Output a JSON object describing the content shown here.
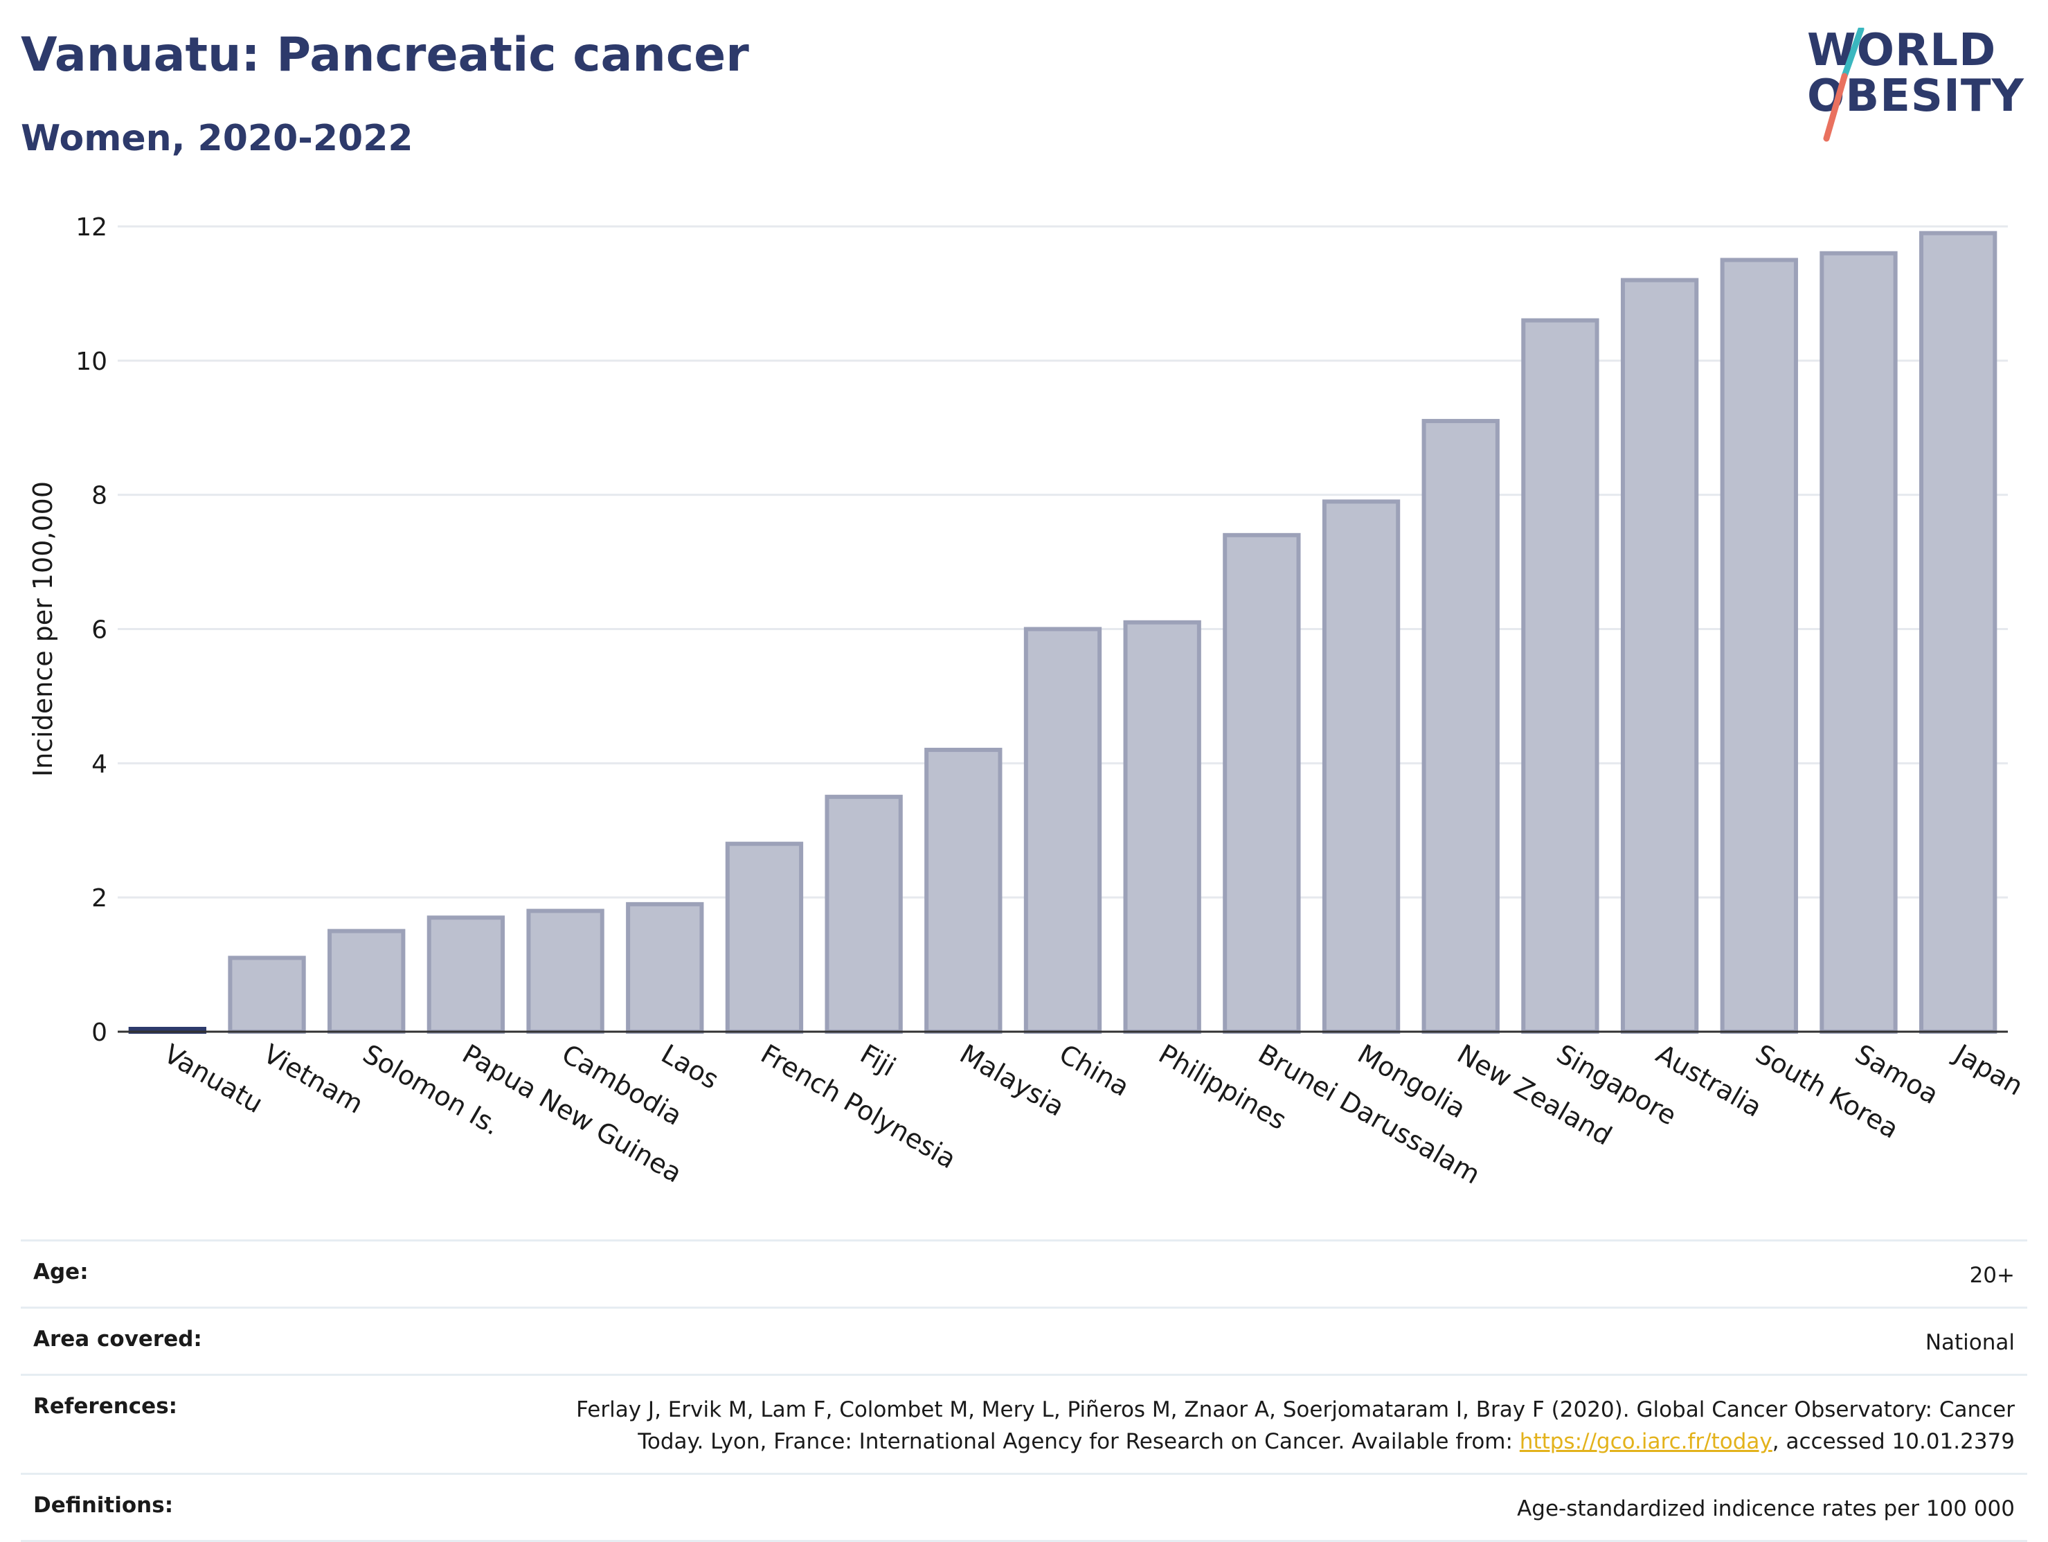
{
  "header": {
    "title": "Vanuatu: Pancreatic cancer",
    "subtitle": "Women, 2020-2022"
  },
  "logo": {
    "line1": "WORLD",
    "line2": "OBESITY",
    "slash_color_top": "#3ab7bf",
    "slash_color_bottom": "#e9715f"
  },
  "chart_data": {
    "type": "bar",
    "categories": [
      "Vanuatu",
      "Vietnam",
      "Solomon Is.",
      "Papua New Guinea",
      "Cambodia",
      "Laos",
      "French Polynesia",
      "Fiji",
      "Malaysia",
      "China",
      "Philippines",
      "Brunei Darussalam",
      "Mongolia",
      "New Zealand",
      "Singapore",
      "Australia",
      "South Korea",
      "Samoa",
      "Japan"
    ],
    "values": [
      0,
      1.1,
      1.5,
      1.7,
      1.8,
      1.9,
      2.8,
      3.5,
      4.2,
      6.0,
      6.1,
      7.4,
      7.9,
      9.1,
      10.6,
      11.2,
      11.5,
      11.6,
      11.9
    ],
    "highlight": "Vanuatu",
    "ylabel": "Incidence per 100,000",
    "xlabel": "",
    "ylim": [
      0,
      12
    ],
    "yticks": [
      "0",
      "2",
      "4",
      "6",
      "8",
      "10",
      "12"
    ],
    "grid": true,
    "bar_color": "#bcc0cf",
    "bar_edge_color": "#9ca1b8",
    "highlight_color": "#2d3a6b"
  },
  "info": [
    {
      "label": "Age:",
      "value": "20+"
    },
    {
      "label": "Area covered:",
      "value": "National"
    },
    {
      "label": "References:",
      "value_pre": "Ferlay J, Ervik M, Lam F, Colombet M, Mery L, Piñeros M, Znaor A, Soerjomataram I, Bray F (2020). Global Cancer Observatory: Cancer Today. Lyon, France: International Agency for Research on Cancer. Available from: ",
      "link": "https://gco.iarc.fr/today",
      "value_post": ", accessed 10.01.2379"
    },
    {
      "label": "Definitions:",
      "value": "Age-standardized indicence rates per 100 000"
    }
  ]
}
